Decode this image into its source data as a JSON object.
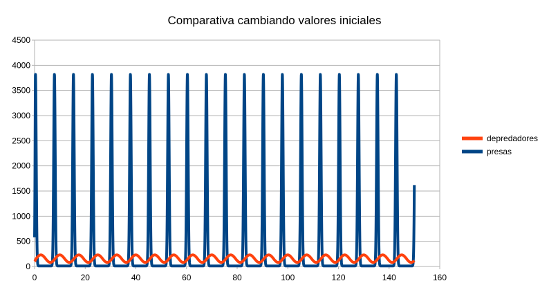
{
  "chart_data": {
    "type": "line",
    "title": "Comparativa cambiando valores iniciales",
    "xlabel": "",
    "ylabel": "",
    "xlim": [
      0,
      160
    ],
    "ylim": [
      0,
      4500
    ],
    "x_ticks": [
      0,
      20,
      40,
      60,
      80,
      100,
      120,
      140,
      160
    ],
    "y_ticks": [
      0,
      500,
      1000,
      1500,
      2000,
      2500,
      3000,
      3500,
      4000,
      4500
    ],
    "grid": "horizontal",
    "legend_position": "right",
    "colors": {
      "depredadores": "#ff420e",
      "presas": "#004586"
    },
    "period": 7.5,
    "x_end": 150,
    "series": [
      {
        "name": "depredadores",
        "color": "#ff420e",
        "description": "periodic oscillation",
        "min": 80,
        "max": 230,
        "start": 100
      },
      {
        "name": "presas",
        "color": "#004586",
        "description": "periodic spikes",
        "min": 10,
        "max": 3820,
        "start": 580
      }
    ]
  }
}
